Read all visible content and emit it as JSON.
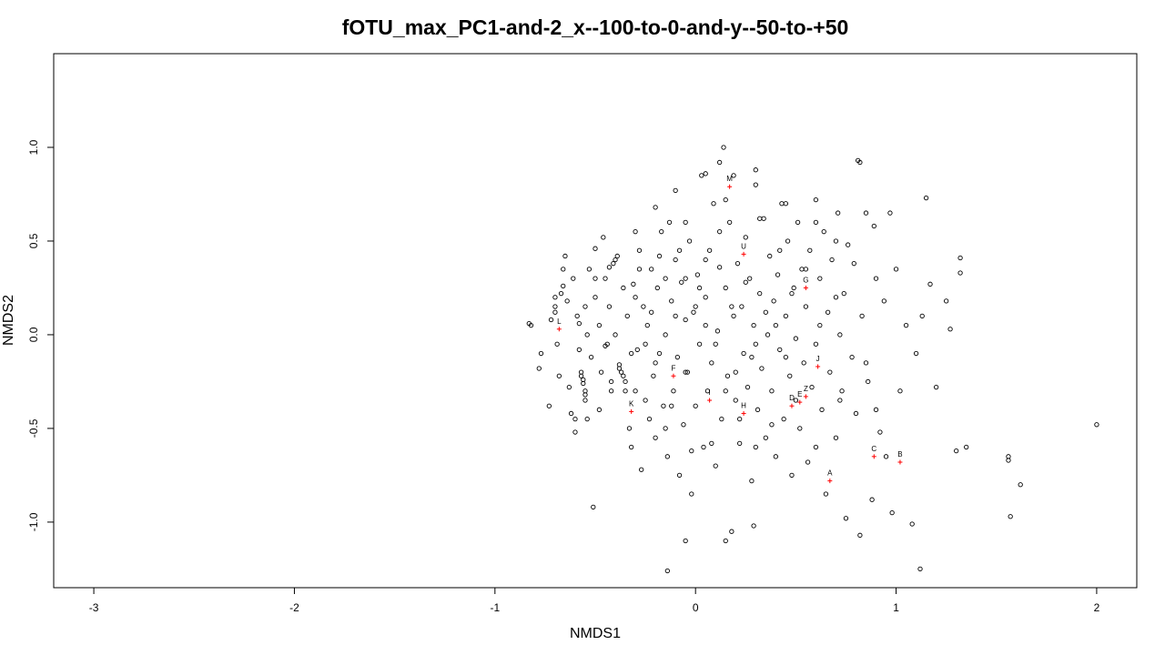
{
  "chart_data": {
    "type": "scatter",
    "title": "fOTU_max_PC1-and-2_x--100-to-0-and-y--50-to-+50",
    "xlabel": "NMDS1",
    "ylabel": "NMDS2",
    "xlim": [
      -3.2,
      2.2
    ],
    "ylim": [
      -1.35,
      1.5
    ],
    "xticks": [
      -3,
      -2,
      -1,
      0,
      1,
      2
    ],
    "yticks": [
      -1.0,
      -0.5,
      0.0,
      0.5,
      1.0
    ],
    "xtick_labels": [
      "-3",
      "-2",
      "-1",
      "0",
      "1",
      "2"
    ],
    "ytick_labels": [
      "-1.0",
      "-0.5",
      "0.0",
      "0.5",
      "1.0"
    ],
    "grid": false,
    "legend": "none",
    "point_color": "#000000",
    "site_color": "#ff0000",
    "sites": [
      {
        "label": "M",
        "x": 0.17,
        "y": 0.79
      },
      {
        "label": "U",
        "x": 0.24,
        "y": 0.43
      },
      {
        "label": "G",
        "x": 0.55,
        "y": 0.25
      },
      {
        "label": "L",
        "x": -0.68,
        "y": 0.03
      },
      {
        "label": "J",
        "x": 0.61,
        "y": -0.17
      },
      {
        "label": "F",
        "x": -0.11,
        "y": -0.22
      },
      {
        "label": "K",
        "x": -0.32,
        "y": -0.41
      },
      {
        "label": "I",
        "x": 0.07,
        "y": -0.35
      },
      {
        "label": "H",
        "x": 0.24,
        "y": -0.42
      },
      {
        "label": "E",
        "x": 0.52,
        "y": -0.36
      },
      {
        "label": "D",
        "x": 0.48,
        "y": -0.38
      },
      {
        "label": "Z",
        "x": 0.55,
        "y": -0.33
      },
      {
        "label": "C",
        "x": 0.89,
        "y": -0.65
      },
      {
        "label": "B",
        "x": 1.02,
        "y": -0.68
      },
      {
        "label": "A",
        "x": 0.67,
        "y": -0.78
      }
    ],
    "points": [
      [
        -0.83,
        0.06
      ],
      [
        -0.82,
        0.05
      ],
      [
        -0.78,
        -0.18
      ],
      [
        -0.77,
        -0.1
      ],
      [
        -0.73,
        -0.38
      ],
      [
        -0.72,
        0.08
      ],
      [
        -0.7,
        0.2
      ],
      [
        -0.7,
        0.15
      ],
      [
        -0.7,
        0.12
      ],
      [
        -0.69,
        -0.05
      ],
      [
        -0.68,
        -0.22
      ],
      [
        -0.67,
        0.22
      ],
      [
        -0.66,
        0.35
      ],
      [
        -0.66,
        0.26
      ],
      [
        -0.65,
        0.42
      ],
      [
        -0.64,
        0.18
      ],
      [
        -0.63,
        -0.28
      ],
      [
        -0.62,
        -0.42
      ],
      [
        -0.61,
        0.3
      ],
      [
        -0.6,
        -0.52
      ],
      [
        -0.59,
        0.1
      ],
      [
        -0.58,
        0.06
      ],
      [
        -0.58,
        -0.08
      ],
      [
        -0.57,
        -0.2
      ],
      [
        -0.57,
        -0.22
      ],
      [
        -0.56,
        -0.24
      ],
      [
        -0.56,
        -0.26
      ],
      [
        -0.55,
        -0.3
      ],
      [
        -0.55,
        -0.32
      ],
      [
        -0.55,
        -0.35
      ],
      [
        -0.54,
        -0.45
      ],
      [
        -0.54,
        0.0
      ],
      [
        -0.53,
        0.35
      ],
      [
        -0.52,
        -0.12
      ],
      [
        -0.51,
        -0.92
      ],
      [
        -0.5,
        0.46
      ],
      [
        -0.5,
        0.2
      ],
      [
        -0.48,
        -0.4
      ],
      [
        -0.47,
        -0.2
      ],
      [
        -0.46,
        0.52
      ],
      [
        -0.45,
        0.3
      ],
      [
        -0.44,
        -0.05
      ],
      [
        -0.43,
        0.36
      ],
      [
        -0.42,
        -0.3
      ],
      [
        -0.41,
        0.38
      ],
      [
        -0.4,
        0.4
      ],
      [
        -0.39,
        0.42
      ],
      [
        -0.38,
        -0.16
      ],
      [
        -0.38,
        -0.18
      ],
      [
        -0.37,
        -0.2
      ],
      [
        -0.36,
        -0.22
      ],
      [
        -0.35,
        -0.25
      ],
      [
        -0.34,
        0.1
      ],
      [
        -0.33,
        -0.5
      ],
      [
        -0.32,
        -0.6
      ],
      [
        -0.31,
        0.27
      ],
      [
        -0.3,
        -0.3
      ],
      [
        -0.29,
        -0.08
      ],
      [
        -0.28,
        0.45
      ],
      [
        -0.27,
        -0.72
      ],
      [
        -0.26,
        0.15
      ],
      [
        -0.25,
        -0.35
      ],
      [
        -0.24,
        0.05
      ],
      [
        -0.23,
        -0.45
      ],
      [
        -0.22,
        0.35
      ],
      [
        -0.21,
        -0.22
      ],
      [
        -0.2,
        -0.55
      ],
      [
        -0.19,
        0.25
      ],
      [
        -0.18,
        -0.1
      ],
      [
        -0.17,
        0.55
      ],
      [
        -0.16,
        -0.38
      ],
      [
        -0.15,
        0.0
      ],
      [
        -0.14,
        -0.65
      ],
      [
        -0.13,
        0.6
      ],
      [
        -0.12,
        0.18
      ],
      [
        -0.11,
        -0.3
      ],
      [
        -0.1,
        0.4
      ],
      [
        -0.09,
        -0.12
      ],
      [
        -0.08,
        -0.75
      ],
      [
        -0.07,
        0.28
      ],
      [
        -0.06,
        -0.48
      ],
      [
        -0.05,
        0.08
      ],
      [
        -0.04,
        -0.2
      ],
      [
        -0.03,
        0.5
      ],
      [
        -0.02,
        -0.85
      ],
      [
        -0.01,
        0.12
      ],
      [
        0.0,
        -0.38
      ],
      [
        0.01,
        0.32
      ],
      [
        0.02,
        -0.05
      ],
      [
        0.03,
        0.85
      ],
      [
        0.04,
        -0.6
      ],
      [
        0.05,
        0.2
      ],
      [
        0.06,
        -0.3
      ],
      [
        0.07,
        0.45
      ],
      [
        0.08,
        -0.15
      ],
      [
        0.09,
        0.7
      ],
      [
        0.1,
        -0.7
      ],
      [
        0.11,
        0.02
      ],
      [
        0.12,
        0.36
      ],
      [
        0.13,
        -0.45
      ],
      [
        0.14,
        1.0
      ],
      [
        0.15,
        0.25
      ],
      [
        0.16,
        -0.22
      ],
      [
        0.17,
        0.6
      ],
      [
        0.18,
        -1.05
      ],
      [
        0.19,
        0.1
      ],
      [
        0.2,
        -0.35
      ],
      [
        0.21,
        0.38
      ],
      [
        0.22,
        -0.58
      ],
      [
        0.23,
        0.15
      ],
      [
        0.24,
        -0.1
      ],
      [
        0.25,
        0.52
      ],
      [
        0.26,
        -0.28
      ],
      [
        0.27,
        0.3
      ],
      [
        0.28,
        -0.78
      ],
      [
        0.29,
        0.05
      ],
      [
        0.3,
        0.88
      ],
      [
        0.31,
        -0.4
      ],
      [
        0.32,
        0.22
      ],
      [
        0.33,
        -0.18
      ],
      [
        0.34,
        0.62
      ],
      [
        0.35,
        -0.55
      ],
      [
        0.36,
        0.0
      ],
      [
        0.37,
        0.42
      ],
      [
        0.38,
        -0.3
      ],
      [
        0.39,
        0.18
      ],
      [
        0.4,
        -0.65
      ],
      [
        0.41,
        0.32
      ],
      [
        0.42,
        -0.08
      ],
      [
        0.43,
        0.7
      ],
      [
        0.44,
        -0.45
      ],
      [
        0.45,
        0.1
      ],
      [
        0.46,
        0.5
      ],
      [
        0.47,
        -0.22
      ],
      [
        0.48,
        -0.75
      ],
      [
        0.49,
        0.25
      ],
      [
        0.5,
        -0.02
      ],
      [
        0.51,
        0.6
      ],
      [
        0.52,
        -0.5
      ],
      [
        0.53,
        0.35
      ],
      [
        0.54,
        -0.15
      ],
      [
        0.55,
        0.15
      ],
      [
        0.56,
        -0.68
      ],
      [
        0.57,
        0.45
      ],
      [
        0.58,
        -0.28
      ],
      [
        0.6,
        0.72
      ],
      [
        0.6,
        -0.05
      ],
      [
        0.62,
        0.3
      ],
      [
        0.63,
        -0.4
      ],
      [
        0.64,
        0.55
      ],
      [
        0.65,
        -0.85
      ],
      [
        0.66,
        0.12
      ],
      [
        0.67,
        -0.2
      ],
      [
        0.68,
        0.4
      ],
      [
        0.7,
        -0.55
      ],
      [
        0.71,
        0.65
      ],
      [
        0.72,
        0.0
      ],
      [
        0.73,
        -0.3
      ],
      [
        0.74,
        0.22
      ],
      [
        0.75,
        -0.98
      ],
      [
        0.76,
        0.48
      ],
      [
        0.78,
        -0.12
      ],
      [
        0.79,
        0.38
      ],
      [
        0.8,
        -0.42
      ],
      [
        0.81,
        0.93
      ],
      [
        0.82,
        -1.07
      ],
      [
        0.83,
        0.1
      ],
      [
        0.85,
        0.65
      ],
      [
        0.86,
        -0.25
      ],
      [
        0.88,
        -0.88
      ],
      [
        0.89,
        0.58
      ],
      [
        0.9,
        0.3
      ],
      [
        0.92,
        -0.52
      ],
      [
        0.94,
        0.18
      ],
      [
        0.95,
        -0.65
      ],
      [
        0.97,
        0.65
      ],
      [
        0.98,
        -0.95
      ],
      [
        1.0,
        0.35
      ],
      [
        1.02,
        -0.3
      ],
      [
        1.05,
        0.05
      ],
      [
        1.08,
        -1.01
      ],
      [
        1.1,
        -0.1
      ],
      [
        1.12,
        -1.25
      ],
      [
        1.13,
        0.1
      ],
      [
        1.15,
        0.73
      ],
      [
        1.17,
        0.27
      ],
      [
        1.2,
        -0.28
      ],
      [
        1.25,
        0.18
      ],
      [
        1.27,
        0.03
      ],
      [
        1.3,
        -0.62
      ],
      [
        1.32,
        0.33
      ],
      [
        1.32,
        0.41
      ],
      [
        1.35,
        -0.6
      ],
      [
        1.56,
        -0.65
      ],
      [
        1.56,
        -0.67
      ],
      [
        1.57,
        -0.97
      ],
      [
        1.62,
        -0.8
      ],
      [
        2.0,
        -0.48
      ],
      [
        -0.14,
        -1.26
      ],
      [
        -0.05,
        -1.1
      ],
      [
        0.15,
        -1.1
      ],
      [
        0.29,
        -1.02
      ],
      [
        0.82,
        0.92
      ],
      [
        0.19,
        0.85
      ],
      [
        0.12,
        0.92
      ],
      [
        0.05,
        0.86
      ],
      [
        -0.1,
        0.77
      ],
      [
        -0.2,
        0.68
      ],
      [
        -0.36,
        0.25
      ],
      [
        -0.43,
        0.15
      ],
      [
        -0.45,
        -0.06
      ],
      [
        -0.48,
        0.05
      ],
      [
        -0.15,
        0.3
      ],
      [
        -0.05,
        0.3
      ],
      [
        0.05,
        0.05
      ],
      [
        0.1,
        -0.05
      ],
      [
        0.2,
        -0.2
      ],
      [
        0.3,
        -0.05
      ],
      [
        0.35,
        0.12
      ],
      [
        0.45,
        -0.12
      ],
      [
        0.0,
        0.15
      ],
      [
        -0.1,
        0.1
      ],
      [
        -0.2,
        -0.15
      ],
      [
        -0.3,
        0.2
      ],
      [
        -0.25,
        -0.05
      ],
      [
        0.15,
        -0.3
      ],
      [
        0.25,
        0.28
      ],
      [
        0.4,
        0.05
      ],
      [
        0.5,
        -0.35
      ],
      [
        0.55,
        0.35
      ],
      [
        -0.35,
        -0.3
      ],
      [
        -0.4,
        0.0
      ],
      [
        -0.6,
        -0.45
      ],
      [
        0.6,
        -0.6
      ],
      [
        0.7,
        0.2
      ],
      [
        -0.05,
        -0.2
      ],
      [
        0.05,
        0.4
      ],
      [
        0.3,
        -0.6
      ],
      [
        -0.15,
        -0.5
      ],
      [
        -0.08,
        0.45
      ],
      [
        0.22,
        -0.45
      ],
      [
        0.42,
        0.45
      ],
      [
        -0.28,
        0.35
      ],
      [
        0.12,
        0.55
      ],
      [
        -0.12,
        -0.38
      ],
      [
        0.38,
        -0.48
      ],
      [
        -0.22,
        0.12
      ],
      [
        0.08,
        -0.58
      ],
      [
        0.32,
        0.62
      ],
      [
        -0.42,
        -0.25
      ],
      [
        0.62,
        0.05
      ],
      [
        -0.02,
        -0.62
      ],
      [
        0.18,
        0.15
      ],
      [
        -0.32,
        -0.1
      ],
      [
        0.48,
        0.22
      ],
      [
        0.28,
        -0.12
      ],
      [
        -0.18,
        0.42
      ],
      [
        0.02,
        0.25
      ],
      [
        -0.05,
        0.6
      ],
      [
        0.15,
        0.72
      ],
      [
        -0.3,
        0.55
      ],
      [
        -0.5,
        0.3
      ],
      [
        -0.55,
        0.15
      ],
      [
        0.72,
        -0.35
      ],
      [
        0.85,
        -0.15
      ],
      [
        0.9,
        -0.4
      ],
      [
        0.7,
        0.5
      ],
      [
        0.6,
        0.6
      ],
      [
        0.45,
        0.7
      ],
      [
        0.3,
        0.8
      ]
    ]
  }
}
